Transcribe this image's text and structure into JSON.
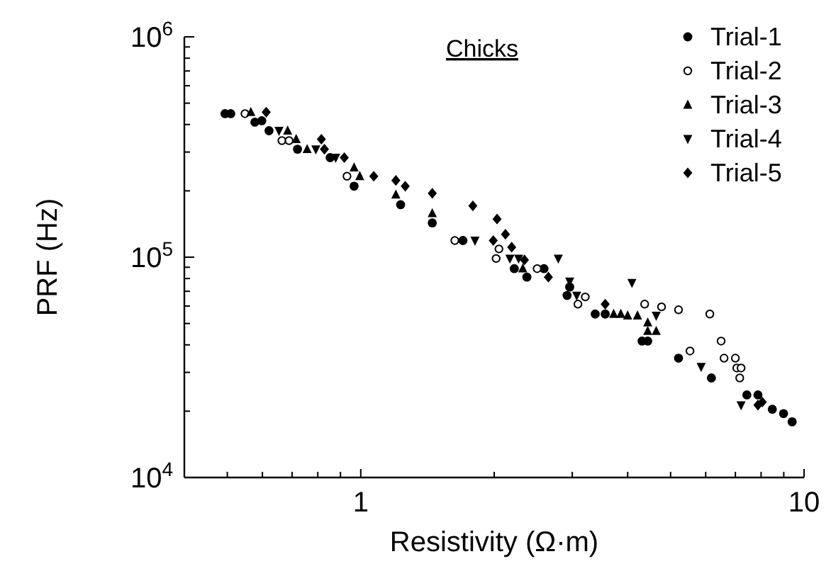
{
  "chart_data": {
    "type": "scatter",
    "title": "Chicks",
    "xlabel": "Resistivity (Ω·m)",
    "ylabel": "PRF (Hz)",
    "log": "xy",
    "legend": "top right",
    "grid": false,
    "xlim": [
      0.4,
      10
    ],
    "xticks": [
      {
        "value": 0.4,
        "label": null
      },
      {
        "value": 0.5,
        "label": null
      },
      {
        "value": 0.6,
        "label": null
      },
      {
        "value": 0.7,
        "label": null
      },
      {
        "value": 0.8,
        "label": null
      },
      {
        "value": 0.9,
        "label": null
      },
      1,
      {
        "value": 2,
        "label": null
      },
      {
        "value": 3,
        "label": null
      },
      {
        "value": 4,
        "label": null
      },
      {
        "value": 5,
        "label": null
      },
      {
        "value": 6,
        "label": null
      },
      {
        "value": 7,
        "label": null
      },
      {
        "value": 8,
        "label": null
      },
      {
        "value": 9,
        "label": null
      },
      10
    ],
    "ylim": [
      10000,
      1000000
    ],
    "yticks": [
      {
        "value": 10000,
        "label": "10$^{4}$"
      },
      {
        "value": 20000,
        "label": null
      },
      {
        "value": 30000,
        "label": null
      },
      {
        "value": 40000,
        "label": null
      },
      {
        "value": 50000,
        "label": null
      },
      {
        "value": 60000,
        "label": null
      },
      {
        "value": 70000,
        "label": null
      },
      {
        "value": 80000,
        "label": null
      },
      {
        "value": 90000,
        "label": null
      },
      {
        "value": 100000,
        "label": "10$^{5}$"
      },
      {
        "value": 200000,
        "label": null
      },
      {
        "value": 300000,
        "label": null
      },
      {
        "value": 400000,
        "label": null
      },
      {
        "value": 500000,
        "label": null
      },
      {
        "value": 600000,
        "label": null
      },
      {
        "value": 700000,
        "label": null
      },
      {
        "value": 800000,
        "label": null
      },
      {
        "value": 900000,
        "label": null
      },
      {
        "value": 1000000,
        "label": "10$^{6}$"
      }
    ],
    "series": [
      {
        "name": "Trial-1",
        "color": "#000000",
        "marker": "circle",
        "x": [
          0.494,
          0.509,
          0.577,
          0.598,
          0.621,
          0.72,
          0.853,
          0.966,
          1.23,
          1.45,
          1.7,
          2.22,
          2.37,
          2.59,
          2.96,
          2.92,
          3.38,
          3.56,
          4.31,
          4.44,
          5.21,
          6.18,
          7.43,
          7.87,
          8.48,
          8.99,
          9.4
        ],
        "values": [
          448000,
          448000,
          410000,
          416000,
          375000,
          309000,
          283000,
          210000,
          173000,
          143000,
          119000,
          88700,
          81200,
          88700,
          73200,
          67000,
          55200,
          55200,
          41600,
          41600,
          34800,
          28300,
          23700,
          23700,
          20400,
          19500,
          17900
        ]
      },
      {
        "name": "Trial-2",
        "color": "#000000",
        "marker": "circle-open",
        "x": [
          0.548,
          0.664,
          0.689,
          0.931,
          1.63,
          2.05,
          2.02,
          2.5,
          3.21,
          3.09,
          4.37,
          4.77,
          5.21,
          6.13,
          5.53,
          6.5,
          6.6,
          7.0,
          7.05,
          7.21,
          7.16
        ],
        "values": [
          448000,
          338000,
          338000,
          233000,
          119000,
          109000,
          98600,
          88700,
          66000,
          61200,
          61200,
          59500,
          57700,
          55200,
          37500,
          41600,
          34800,
          34800,
          31400,
          31400,
          28300
        ]
      },
      {
        "name": "Trial-3",
        "color": "#000000",
        "marker": "triangle",
        "x": [
          0.565,
          0.684,
          0.715,
          0.757,
          0.966,
          0.995,
          1.2,
          1.45,
          2.32,
          3.72,
          3.86,
          4.0,
          4.21,
          4.44,
          4.44,
          4.64
        ],
        "values": [
          455000,
          375000,
          343000,
          309000,
          255000,
          233000,
          192000,
          158000,
          88700,
          55200,
          55200,
          54300,
          54300,
          50500,
          46200,
          46200
        ]
      },
      {
        "name": "Trial-4",
        "color": "#000000",
        "marker": "triangle-down",
        "x": [
          0.654,
          0.792,
          0.878,
          1.81,
          2.17,
          2.27,
          2.79,
          2.96,
          3.07,
          4.09,
          4.64,
          5.86,
          7.21
        ],
        "values": [
          375000,
          309000,
          283000,
          119000,
          98600,
          98600,
          98600,
          77600,
          67000,
          76500,
          54300,
          31800,
          21300
        ]
      },
      {
        "name": "Trial-5",
        "color": "#000000",
        "marker": "diamond",
        "x": [
          0.612,
          0.815,
          0.828,
          0.918,
          1.07,
          1.2,
          1.26,
          1.45,
          1.79,
          2.03,
          2.12,
          1.99,
          2.19,
          2.34,
          2.65,
          3.56,
          7.87,
          8.05
        ],
        "values": [
          455000,
          343000,
          309000,
          283000,
          233000,
          223000,
          210000,
          195000,
          171000,
          149000,
          127000,
          119000,
          111000,
          97100,
          81200,
          61200,
          21300,
          22000
        ]
      }
    ]
  }
}
